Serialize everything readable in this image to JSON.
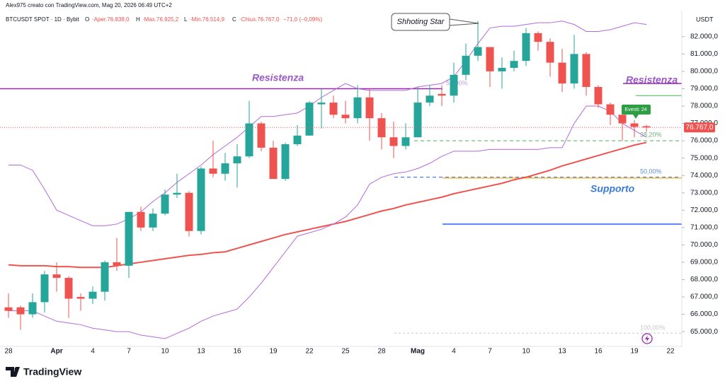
{
  "header": {
    "credit": "Alex975 creato con TradingView.com, Mag 20, 2026 06:49 UTC+2",
    "symbol": "BTCUSDT SPOT · 1D · Bybit",
    "o_key": "O",
    "o_value": "·Aper.76.838,0",
    "h_key": "H",
    "h_value": "·Max.76.925,2",
    "l_key": "L",
    "l_value": "·Min.76.514,9",
    "c_key": "C",
    "c_value": "·Chius.76.767,0",
    "change": "−71,0 (−0,09%)"
  },
  "footer": {
    "brand": "TradingView"
  },
  "chart_data": {
    "type": "candlestick",
    "currency": "USDT",
    "categories": [
      "28",
      null,
      null,
      null,
      "Apr",
      null,
      null,
      "4",
      null,
      null,
      "7",
      null,
      null,
      "10",
      null,
      null,
      "13",
      null,
      null,
      "16",
      null,
      null,
      "19",
      null,
      null,
      "22",
      null,
      null,
      "25",
      null,
      null,
      "28",
      null,
      null,
      "Mag",
      null,
      null,
      "4",
      null,
      null,
      "7",
      null,
      null,
      "10",
      null,
      null,
      "13",
      null,
      null,
      "16",
      null,
      null,
      "19",
      null,
      null,
      "22"
    ],
    "open": [
      66400,
      66400,
      66000,
      66700,
      68300,
      68100,
      67000,
      66900,
      67300,
      69000,
      68800,
      71900,
      71000,
      71800,
      72900,
      73000,
      70800,
      74400,
      74100,
      74700,
      75100,
      77000,
      75600,
      73800,
      75800,
      76300,
      78100,
      78200,
      77500,
      77300,
      78500,
      77300,
      76200,
      75700,
      76200,
      78200,
      78700,
      78600,
      79800,
      80900,
      81400,
      80000,
      80200,
      80600,
      82200,
      81700,
      80500,
      79300,
      81000,
      79100,
      78100,
      77500,
      77000,
      76838,
      null,
      null
    ],
    "high": [
      67200,
      66500,
      67200,
      68500,
      69000,
      68200,
      67200,
      67600,
      69100,
      70400,
      71900,
      72200,
      72100,
      73200,
      74100,
      73100,
      74500,
      76000,
      75300,
      75800,
      78300,
      77100,
      76000,
      75900,
      76900,
      78300,
      79000,
      78600,
      78300,
      79200,
      79000,
      77600,
      77100,
      77000,
      79100,
      79200,
      79200,
      80500,
      81600,
      82900,
      81400,
      80800,
      81200,
      82500,
      82300,
      81900,
      81300,
      82100,
      81100,
      79200,
      78200,
      77700,
      77200,
      76925.2,
      null,
      null
    ],
    "low": [
      65800,
      65100,
      65800,
      66100,
      67300,
      65800,
      66200,
      66600,
      66800,
      68500,
      68100,
      70800,
      70800,
      71700,
      72700,
      70500,
      70600,
      73900,
      73700,
      73300,
      75000,
      75400,
      73800,
      73700,
      75700,
      76300,
      76700,
      77300,
      77000,
      77000,
      76000,
      75500,
      75000,
      75500,
      76200,
      78000,
      78000,
      78200,
      79500,
      80600,
      79100,
      79000,
      80000,
      80300,
      81200,
      79700,
      78800,
      79000,
      78600,
      77900,
      76900,
      76000,
      76200,
      76514.9,
      null,
      null
    ],
    "close": [
      66200,
      66000,
      66700,
      68300,
      68100,
      66900,
      66900,
      67300,
      69000,
      68800,
      71900,
      71000,
      71800,
      72900,
      73000,
      70800,
      74400,
      74100,
      74700,
      75100,
      77000,
      75600,
      73800,
      75800,
      76300,
      78200,
      78200,
      77500,
      77300,
      78500,
      77300,
      76200,
      75700,
      76200,
      78200,
      78600,
      78600,
      79800,
      80900,
      81400,
      80000,
      80200,
      80600,
      82200,
      81700,
      80500,
      79300,
      81000,
      79100,
      78100,
      77500,
      77000,
      76800,
      76767,
      null,
      null
    ],
    "up_color": "#26a69a",
    "down_color": "#ef5350",
    "overlays": [
      {
        "color": "#ef5350",
        "width": 2,
        "values": [
          68850,
          68800,
          68800,
          68800,
          68750,
          68750,
          68700,
          68700,
          68700,
          68800,
          68900,
          69000,
          69100,
          69200,
          69300,
          69400,
          69450,
          69550,
          69600,
          69800,
          70000,
          70200,
          70400,
          70600,
          70750,
          70900,
          71050,
          71200,
          71350,
          71550,
          71750,
          71950,
          72100,
          72300,
          72450,
          72600,
          72750,
          72950,
          73100,
          73250,
          73400,
          73550,
          73750,
          73900,
          74100,
          74300,
          74550,
          74750,
          74950,
          75150,
          75350,
          75550,
          75750,
          75900,
          null,
          null
        ]
      },
      {
        "color": "#b36ad9",
        "width": 1,
        "values": [
          74600,
          74600,
          74300,
          73200,
          72000,
          71700,
          71400,
          71100,
          71100,
          71200,
          71500,
          71900,
          72500,
          73000,
          73600,
          74100,
          74600,
          75200,
          75700,
          76200,
          76800,
          77400,
          77400,
          77500,
          77600,
          78000,
          78500,
          78900,
          79300,
          79000,
          78900,
          78900,
          78900,
          78900,
          79100,
          79200,
          79300,
          79700,
          80600,
          81600,
          82500,
          82600,
          82600,
          82700,
          82800,
          82800,
          82900,
          82700,
          82300,
          82300,
          82400,
          82600,
          82800,
          82700,
          null,
          null
        ]
      },
      {
        "color": "#b36ad9",
        "width": 1,
        "values": [
          66200,
          66200,
          66200,
          65900,
          65600,
          65500,
          65400,
          65200,
          65100,
          65000,
          65000,
          64800,
          64700,
          64600,
          64900,
          65200,
          65600,
          65900,
          66100,
          66300,
          67000,
          67800,
          68700,
          69600,
          70500,
          70700,
          70900,
          71200,
          71600,
          72300,
          73500,
          73900,
          74100,
          74200,
          74400,
          74700,
          75100,
          75400,
          75400,
          75400,
          75500,
          75500,
          75500,
          75500,
          75500,
          75600,
          75600,
          77000,
          78000,
          78000,
          77700,
          77000,
          76600,
          76200,
          null,
          null
        ]
      }
    ],
    "levels": [
      {
        "value": 79000,
        "color": "#9c27b0"
      },
      {
        "value": 79300,
        "color": "#9c27b0"
      },
      {
        "value": 78600,
        "color": "#4caf50"
      },
      {
        "value": 76000,
        "color": "#4caf50"
      },
      {
        "value": 73900,
        "color": "#2962ff"
      },
      {
        "value": 73850,
        "color": "#f2b400"
      },
      {
        "value": 71200,
        "color": "#2962ff"
      },
      {
        "value": 64920,
        "color": "#c8c8c8"
      }
    ],
    "annotations": [
      "Resistenza",
      "Resistenza",
      "Supporto",
      "Shhoting Star",
      "Eventi: 24"
    ],
    "fib_labels": [
      "50,00%",
      "38,20%",
      "50,00%",
      "100,00%"
    ],
    "last_price": {
      "value": 76767,
      "label": "76.767,0"
    },
    "ylim": [
      64150,
      83500
    ],
    "yticks": [
      {
        "value": 82000,
        "label": "82.000,0"
      },
      {
        "value": 81000,
        "label": "81.000,0"
      },
      {
        "value": 80000,
        "label": "80.000,0"
      },
      {
        "value": 79000,
        "label": "79.000,0"
      },
      {
        "value": 78000,
        "label": "78.000,0"
      },
      {
        "value": 77000,
        "label": "77.000,0"
      },
      {
        "value": 76000,
        "label": "76.000,0"
      },
      {
        "value": 75000,
        "label": "75.000,0"
      },
      {
        "value": 74000,
        "label": "74.000,0"
      },
      {
        "value": 73000,
        "label": "73.000,0"
      },
      {
        "value": 72000,
        "label": "72.000,0"
      },
      {
        "value": 71000,
        "label": "71.000,0"
      },
      {
        "value": 70000,
        "label": "70.000,0"
      },
      {
        "value": 69000,
        "label": "69.000,0"
      },
      {
        "value": 68000,
        "label": "68.000,0"
      },
      {
        "value": 67000,
        "label": "67.000,0"
      },
      {
        "value": 66000,
        "label": "66.000,0"
      },
      {
        "value": 65000,
        "label": "65.000,0"
      }
    ]
  }
}
